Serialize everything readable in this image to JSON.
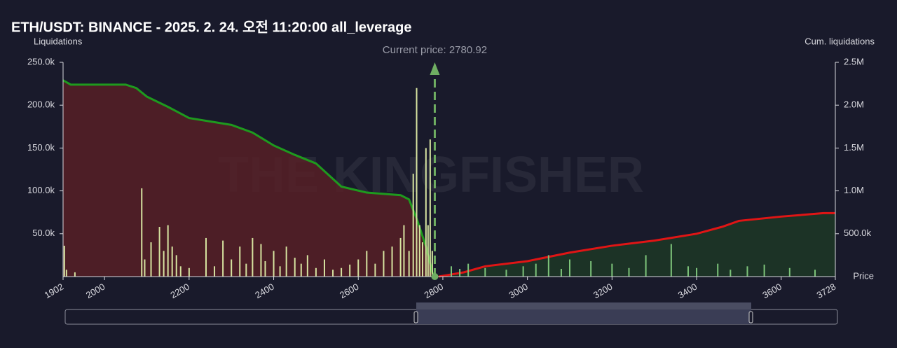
{
  "chart_data": {
    "type": "liquidation-map",
    "title": "ETH/USDT: BINANCE - 2025. 2. 24. 오전 11:20:00 all_leverage",
    "y_label": "Liquidations",
    "y2_label": "Cum. liquidations",
    "x_label": "Price",
    "watermark": "THE KINGFISHER",
    "current_price": 2780.92,
    "current_price_label": "Current price: 2780.92",
    "current_price_color": "#6fae62",
    "xlim": [
      1902,
      3728
    ],
    "xticks": [
      1902,
      2000,
      2200,
      2400,
      2600,
      2800,
      3000,
      3200,
      3400,
      3600,
      3728
    ],
    "ylim": [
      0,
      250000
    ],
    "yticks": [
      {
        "value": 50000,
        "label": "50.0k"
      },
      {
        "value": 100000,
        "label": "100.0k"
      },
      {
        "value": 150000,
        "label": "150.0k"
      },
      {
        "value": 200000,
        "label": "200.0k"
      },
      {
        "value": 250000,
        "label": "250.0k"
      }
    ],
    "y2lim": [
      0,
      2500000
    ],
    "y2ticks": [
      {
        "value": 500000,
        "label": "500.0k"
      },
      {
        "value": 1000000,
        "label": "1.0M"
      },
      {
        "value": 1500000,
        "label": "1.5M"
      },
      {
        "value": 2000000,
        "label": "2.0M"
      },
      {
        "value": 2500000,
        "label": "2.5M"
      }
    ],
    "bar_color_below": "#d6e3a0",
    "bar_color_above": "#7dc47a",
    "x": [
      1905,
      1910,
      1930,
      2088,
      2095,
      2110,
      2130,
      2140,
      2150,
      2160,
      2170,
      2180,
      2200,
      2240,
      2260,
      2280,
      2300,
      2320,
      2335,
      2350,
      2370,
      2380,
      2400,
      2415,
      2430,
      2450,
      2465,
      2480,
      2500,
      2520,
      2540,
      2560,
      2580,
      2600,
      2620,
      2640,
      2660,
      2680,
      2700,
      2708,
      2720,
      2730,
      2738,
      2745,
      2752,
      2760,
      2765,
      2770,
      2775,
      2820,
      2840,
      2860,
      2900,
      2950,
      2990,
      3020,
      3050,
      3080,
      3100,
      3150,
      3200,
      3240,
      3280,
      3340,
      3380,
      3400,
      3450,
      3480,
      3520,
      3560,
      3620,
      3680
    ],
    "values": [
      36000,
      8000,
      5000,
      103000,
      20000,
      40000,
      58000,
      30000,
      60000,
      35000,
      25000,
      12000,
      10000,
      45000,
      12000,
      42000,
      20000,
      35000,
      15000,
      45000,
      38000,
      18000,
      30000,
      12000,
      35000,
      22000,
      15000,
      25000,
      10000,
      20000,
      8000,
      10000,
      14000,
      20000,
      30000,
      15000,
      30000,
      35000,
      45000,
      60000,
      30000,
      120000,
      220000,
      60000,
      40000,
      150000,
      60000,
      160000,
      30000,
      12000,
      9000,
      15000,
      10000,
      8000,
      12000,
      15000,
      25000,
      9000,
      20000,
      18000,
      15000,
      10000,
      25000,
      38000,
      12000,
      10000,
      15000,
      8000,
      12000,
      14000,
      10000,
      8000
    ],
    "lines": [
      {
        "color": "#1e9a1e",
        "fill": "#5a1f26",
        "axis": "y2",
        "x": [
          1902,
          1920,
          2050,
          2075,
          2100,
          2150,
          2200,
          2300,
          2350,
          2400,
          2450,
          2500,
          2560,
          2620,
          2700,
          2720,
          2740,
          2760,
          2775,
          2780
        ],
        "values": [
          2290000,
          2240000,
          2240000,
          2200000,
          2100000,
          1980000,
          1850000,
          1770000,
          1680000,
          1530000,
          1420000,
          1320000,
          1050000,
          980000,
          950000,
          900000,
          650000,
          350000,
          50000,
          0
        ]
      },
      {
        "color": "#e01515",
        "fill": "#1d3a26",
        "axis": "y2",
        "x": [
          2790,
          2850,
          2900,
          3000,
          3100,
          3200,
          3300,
          3400,
          3460,
          3500,
          3600,
          3700,
          3728
        ],
        "values": [
          0,
          50000,
          120000,
          180000,
          280000,
          360000,
          420000,
          500000,
          580000,
          650000,
          700000,
          740000,
          740000
        ]
      }
    ]
  }
}
